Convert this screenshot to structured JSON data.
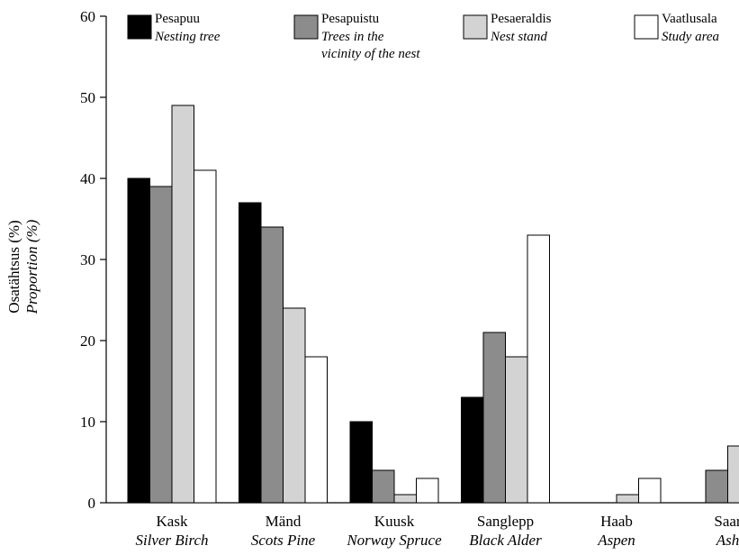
{
  "chart_data": {
    "type": "bar",
    "ylabel": "Osatähtsus (%)",
    "ylabel_en": "Proportion (%)",
    "ylim": [
      0,
      60
    ],
    "yticks": [
      "0",
      "10",
      "20",
      "30",
      "40",
      "50",
      "60"
    ],
    "grid": false,
    "legend_placement": "top",
    "categories": [
      {
        "et": "Kask",
        "en": "Silver Birch"
      },
      {
        "et": "Mänd",
        "en": "Scots Pine"
      },
      {
        "et": "Kuusk",
        "en": "Norway Spruce"
      },
      {
        "et": "Sanglepp",
        "en": "Black Alder"
      },
      {
        "et": "Haab",
        "en": "Aspen"
      },
      {
        "et": "Saar",
        "en": "Ash"
      }
    ],
    "series": [
      {
        "name": "Pesapuu",
        "name_en": [
          "Nesting tree"
        ],
        "color": "#000000",
        "values": [
          40,
          37,
          10,
          13,
          0,
          0
        ]
      },
      {
        "name": "Pesapuistu",
        "name_en": [
          "Trees in the",
          "vicinity of the nest"
        ],
        "color": "#8c8c8c",
        "values": [
          39,
          34,
          4,
          21,
          0,
          4
        ]
      },
      {
        "name": "Pesaeraldis",
        "name_en": [
          "Nest stand"
        ],
        "color": "#d3d3d3",
        "values": [
          49,
          24,
          1,
          18,
          1,
          7
        ]
      },
      {
        "name": "Vaatlusala",
        "name_en": [
          "Study area"
        ],
        "color": "#ffffff",
        "values": [
          41,
          18,
          3,
          33,
          3,
          0
        ]
      }
    ]
  }
}
